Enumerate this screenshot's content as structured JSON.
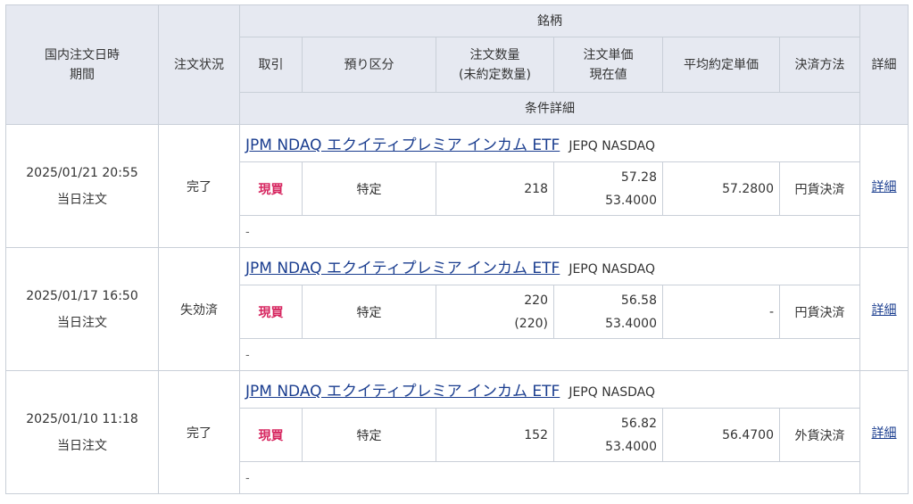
{
  "header": {
    "date_label_1": "国内注文日時",
    "date_label_2": "期間",
    "status_label": "注文状況",
    "stock_label": "銘柄",
    "trade_label": "取引",
    "account_label": "預り区分",
    "qty_label_1": "注文数量",
    "qty_label_2": "(未約定数量)",
    "price_label_1": "注文単価",
    "price_label_2": "現在値",
    "avg_label": "平均約定単価",
    "settle_label": "決済方法",
    "detail_label": "詳細",
    "condition_label": "条件詳細"
  },
  "orders": [
    {
      "datetime": "2025/01/21 20:55",
      "period": "当日注文",
      "status": "完了",
      "stock_name": "JPM NDAQ エクイティプレミア インカム ETF",
      "stock_code": "JEPQ NASDAQ",
      "trade": "現買",
      "account": "特定",
      "qty": "218",
      "unfilled": "",
      "order_price": "57.28",
      "current_price": "53.4000",
      "avg_price": "57.2800",
      "settlement": "円貨決済",
      "detail": "詳細",
      "condition": "-"
    },
    {
      "datetime": "2025/01/17 16:50",
      "period": "当日注文",
      "status": "失効済",
      "stock_name": "JPM NDAQ エクイティプレミア インカム ETF",
      "stock_code": "JEPQ NASDAQ",
      "trade": "現買",
      "account": "特定",
      "qty": "220",
      "unfilled": "(220)",
      "order_price": "56.58",
      "current_price": "53.4000",
      "avg_price": "-",
      "settlement": "円貨決済",
      "detail": "詳細",
      "condition": "-"
    },
    {
      "datetime": "2025/01/10 11:18",
      "period": "当日注文",
      "status": "完了",
      "stock_name": "JPM NDAQ エクイティプレミア インカム ETF",
      "stock_code": "JEPQ NASDAQ",
      "trade": "現買",
      "account": "特定",
      "qty": "152",
      "unfilled": "",
      "order_price": "56.82",
      "current_price": "53.4000",
      "avg_price": "56.4700",
      "settlement": "外貨決済",
      "detail": "詳細",
      "condition": "-"
    }
  ],
  "colors": {
    "header_bg": "#e6e9f1",
    "border": "#c9cfd8",
    "link": "#1a3d8f",
    "buy": "#d6245e"
  }
}
